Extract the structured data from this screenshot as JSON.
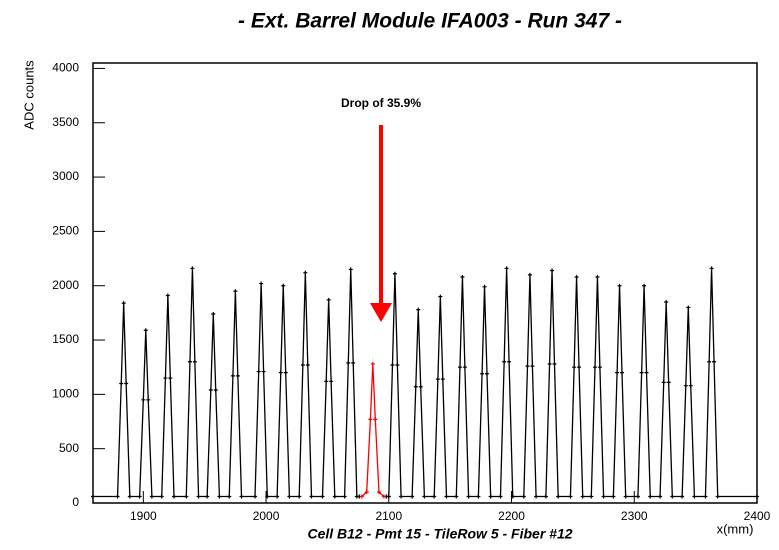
{
  "chart_data": {
    "type": "line",
    "title": "- Ext. Barrel Module IFA003 - Run 347 -",
    "x_label": "Cell B12 - Pmt 15 - TileRow 5 - Fiber #12",
    "x_unit": "x(mm)",
    "y_label": "ADC counts",
    "annotation": "Drop of 35.9%",
    "xlim": [
      1859,
      2400
    ],
    "xticks": [
      1900,
      2000,
      2100,
      2200,
      2300,
      2400
    ],
    "ylim": [
      0,
      4050
    ],
    "yticks": [
      0,
      500,
      1000,
      1500,
      2000,
      2500,
      3000,
      3500,
      4000
    ],
    "series": [
      {
        "color": "#000000",
        "x": [
          1859,
          1879,
          1882,
          1884,
          1886,
          1889,
          1897,
          1900,
          1902,
          1904,
          1907,
          1915,
          1918,
          1920,
          1922,
          1925,
          1935,
          1938,
          1940,
          1942,
          1945,
          1952,
          1955,
          1957,
          1959,
          1962,
          1970,
          1973,
          1975,
          1977,
          1980,
          1991,
          1994,
          1996,
          1998,
          2001,
          2009,
          2012,
          2014,
          2016,
          2019,
          2027,
          2030,
          2032,
          2034,
          2037,
          2046,
          2049,
          2051,
          2053,
          2056,
          2064,
          2067,
          2069,
          2071,
          2074,
          2076,
          2080,
          2098,
          2100,
          2103,
          2105,
          2107,
          2110,
          2119,
          2122,
          2124,
          2126,
          2129,
          2137,
          2140,
          2142,
          2144,
          2147,
          2155,
          2158,
          2160,
          2162,
          2165,
          2173,
          2176,
          2178,
          2180,
          2183,
          2191,
          2194,
          2196,
          2198,
          2201,
          2210,
          2213,
          2215,
          2217,
          2220,
          2228,
          2231,
          2233,
          2235,
          2238,
          2248,
          2251,
          2253,
          2255,
          2258,
          2265,
          2268,
          2270,
          2272,
          2275,
          2283,
          2286,
          2288,
          2290,
          2293,
          2303,
          2306,
          2308,
          2310,
          2313,
          2321,
          2324,
          2326,
          2328,
          2331,
          2339,
          2342,
          2344,
          2346,
          2349,
          2358,
          2361,
          2363,
          2365,
          2368,
          2400
        ],
        "values": [
          60,
          60,
          1100,
          1840,
          1100,
          60,
          60,
          950,
          1590,
          950,
          60,
          60,
          1150,
          1910,
          1150,
          60,
          60,
          1300,
          2160,
          1300,
          60,
          60,
          1040,
          1740,
          1040,
          60,
          60,
          1170,
          1950,
          1170,
          60,
          60,
          1210,
          2020,
          1210,
          60,
          60,
          1200,
          2000,
          1200,
          60,
          60,
          1270,
          2120,
          1270,
          60,
          60,
          1120,
          1870,
          1120,
          60,
          60,
          1290,
          2150,
          1290,
          60,
          60,
          null,
          60,
          60,
          1270,
          2110,
          1270,
          60,
          60,
          1070,
          1780,
          1070,
          60,
          60,
          1140,
          1900,
          1140,
          60,
          60,
          1250,
          2080,
          1250,
          60,
          60,
          1190,
          1990,
          1190,
          60,
          60,
          1300,
          2160,
          1300,
          60,
          60,
          1260,
          2100,
          1260,
          60,
          60,
          1280,
          2140,
          1280,
          60,
          60,
          1250,
          2080,
          1250,
          60,
          60,
          1250,
          2080,
          1250,
          60,
          60,
          1200,
          2000,
          1200,
          60,
          60,
          1200,
          2000,
          1200,
          60,
          60,
          1110,
          1850,
          1110,
          60,
          60,
          1080,
          1800,
          1080,
          60,
          60,
          1300,
          2160,
          1300,
          60,
          60
        ]
      },
      {
        "color": "#ff0000",
        "x": [
          2078,
          2082,
          2085,
          2087,
          2089,
          2092,
          2096
        ],
        "values": [
          60,
          100,
          770,
          1280,
          770,
          100,
          60
        ]
      }
    ]
  }
}
